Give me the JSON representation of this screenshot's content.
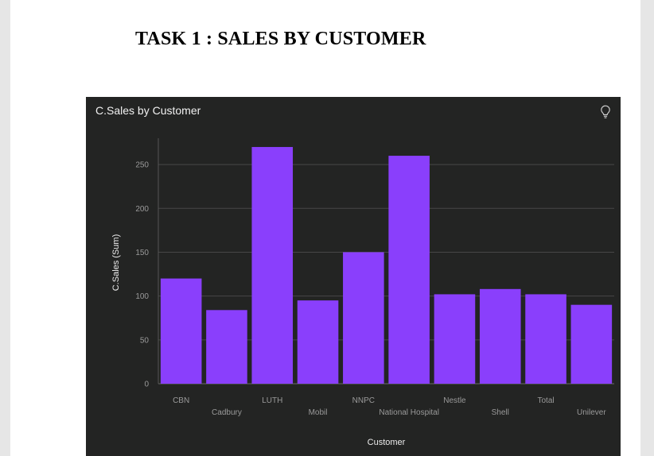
{
  "heading": "TASK 1 : SALES BY CUSTOMER",
  "panel": {
    "title": "C.Sales by Customer",
    "icon": "lightbulb-icon"
  },
  "colors": {
    "bar": "#8a3ffc",
    "panel_bg": "#232423",
    "grid": "#474747"
  },
  "chart_data": {
    "type": "bar",
    "title": "C.Sales by Customer",
    "xlabel": "Customer",
    "ylabel": "C.Sales (Sum)",
    "categories": [
      "CBN",
      "Cadbury",
      "LUTH",
      "Mobil",
      "NNPC",
      "National Hospital",
      "Nestle",
      "Shell",
      "Total",
      "Unilever"
    ],
    "values": [
      120,
      84,
      270,
      95,
      150,
      260,
      102,
      108,
      102,
      90
    ],
    "yticks": [
      0,
      50,
      100,
      150,
      200,
      250
    ],
    "ylim": [
      0,
      280
    ],
    "grid": true,
    "legend": "none"
  }
}
